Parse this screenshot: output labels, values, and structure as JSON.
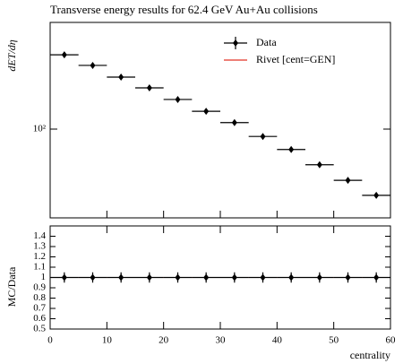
{
  "chart_data": {
    "type": "scatter",
    "title": "Transverse energy results for 62.4 GeV Au+Au collisions",
    "ylabel": "dET/dη",
    "xlabel": "centrality",
    "ratio_ylabel": "MC/Data",
    "x": [
      2.5,
      7.5,
      12.5,
      17.5,
      22.5,
      27.5,
      32.5,
      37.5,
      42.5,
      47.5,
      52.5,
      57.5
    ],
    "xerr": 2.5,
    "series": [
      {
        "name": "Data",
        "color": "#000000",
        "values": [
          407,
          333,
          267,
          218,
          175,
          140,
          113,
          87,
          68,
          51,
          38,
          28.6
        ]
      },
      {
        "name": "Rivet [cent=GEN]",
        "color": "#e8554a"
      }
    ],
    "ratio_values": [
      1,
      1,
      1,
      1,
      1,
      1,
      1,
      1,
      1,
      1,
      1,
      1
    ],
    "ratio_errors": [
      0.05,
      0.05,
      0.05,
      0.05,
      0.05,
      0.05,
      0.05,
      0.05,
      0.05,
      0.05,
      0.05,
      0.05
    ],
    "xlim": [
      0,
      60
    ],
    "xticks": [
      0,
      10,
      20,
      30,
      40,
      50,
      60
    ],
    "ylim": [
      18.7,
      750
    ],
    "yticks": [
      {
        "value": 100,
        "label": "10²"
      }
    ],
    "log_y": true,
    "ratio_ylim": [
      0.5,
      1.5
    ],
    "ratio_yticks": [
      0.5,
      0.6,
      0.7,
      0.8,
      0.9,
      1,
      1.1,
      1.2,
      1.3,
      1.4
    ],
    "legend": "upper right"
  }
}
